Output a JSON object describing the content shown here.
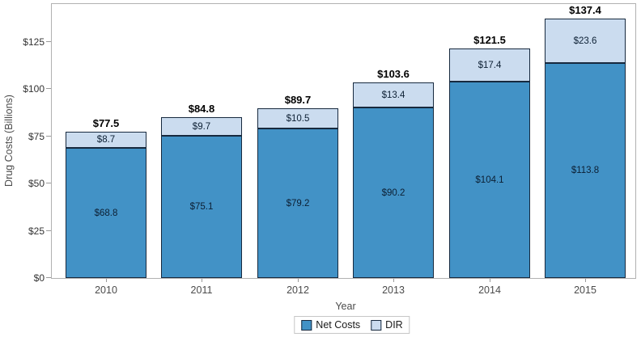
{
  "chart_data": {
    "type": "bar",
    "stacked": true,
    "title": "",
    "xlabel": "Year",
    "ylabel": "Drug Costs (Billions)",
    "categories": [
      "2010",
      "2011",
      "2012",
      "2013",
      "2014",
      "2015"
    ],
    "series": [
      {
        "name": "Net Costs",
        "values": [
          68.8,
          75.1,
          79.2,
          90.2,
          104.1,
          113.8
        ],
        "labels": [
          "$68.8",
          "$75.1",
          "$79.2",
          "$90.2",
          "$104.1",
          "$113.8"
        ],
        "color": "#4292c6"
      },
      {
        "name": "DIR",
        "values": [
          8.7,
          9.7,
          10.5,
          13.4,
          17.4,
          23.6
        ],
        "labels": [
          "$8.7",
          "$9.7",
          "$10.5",
          "$13.4",
          "$17.4",
          "$23.6"
        ],
        "color": "#cbdcef"
      }
    ],
    "totals": [
      77.5,
      84.8,
      89.7,
      103.6,
      121.5,
      137.4
    ],
    "total_labels": [
      "$77.5",
      "$84.8",
      "$89.7",
      "$103.6",
      "$121.5",
      "$137.4"
    ],
    "ylim": [
      0,
      145
    ],
    "yticks": [
      {
        "value": 0,
        "label": "$0"
      },
      {
        "value": 25,
        "label": "$25"
      },
      {
        "value": 50,
        "label": "$50"
      },
      {
        "value": 75,
        "label": "$75"
      },
      {
        "value": 100,
        "label": "$100"
      },
      {
        "value": 125,
        "label": "$125"
      }
    ],
    "grid": false,
    "legend_position": "bottom",
    "colors": {
      "bar_outline": "#17293e",
      "frame_border": "#b1b1b1",
      "tick_mark": "#9a9a9a",
      "segment_label_text": "#0c1f33",
      "total_label_text": "#000000",
      "axis_text": "#4b4b4b"
    }
  }
}
